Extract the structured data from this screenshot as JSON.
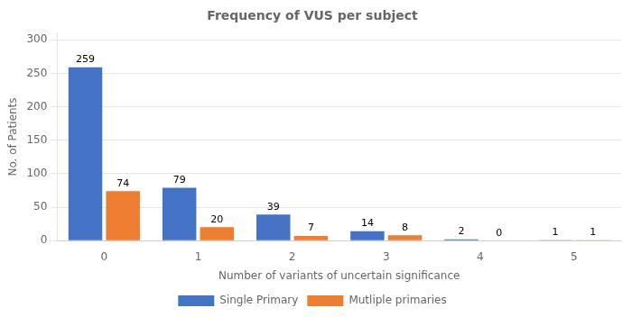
{
  "chart_data": {
    "type": "bar",
    "title": "Frequency of VUS per subject",
    "xlabel": "Number of variants of uncertain significance",
    "ylabel": "No. of Patients",
    "categories": [
      0,
      1,
      2,
      3,
      4,
      5
    ],
    "series": [
      {
        "name": "Single Primary",
        "color": "#4472C4",
        "values": [
          259,
          79,
          39,
          14,
          2,
          1
        ]
      },
      {
        "name": "Mutliple primaries",
        "color": "#ED7D31",
        "values": [
          74,
          20,
          7,
          8,
          0,
          1
        ]
      }
    ],
    "ylim": [
      0,
      310
    ],
    "yticks": [
      0,
      50,
      100,
      150,
      200,
      250,
      300
    ],
    "grid": true,
    "legend": "bottom",
    "data_labels": true
  }
}
